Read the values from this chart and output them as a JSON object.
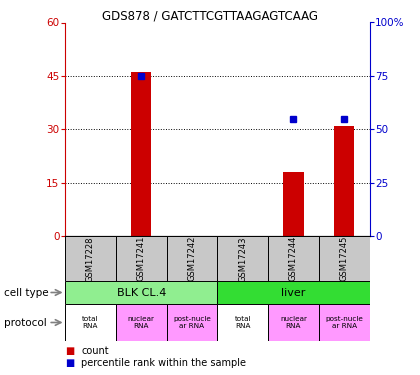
{
  "title": "GDS878 / GATCTTCGTTAAGAGTCAAG",
  "samples": [
    "GSM17228",
    "GSM17241",
    "GSM17242",
    "GSM17243",
    "GSM17244",
    "GSM17245"
  ],
  "counts": [
    0,
    46,
    0,
    0,
    18,
    31
  ],
  "percentiles": [
    null,
    75,
    null,
    null,
    55,
    55
  ],
  "ylim_left": [
    0,
    60
  ],
  "ylim_right": [
    0,
    100
  ],
  "yticks_left": [
    0,
    15,
    30,
    45,
    60
  ],
  "yticks_right": [
    0,
    25,
    50,
    75,
    100
  ],
  "cell_type_groups": [
    {
      "label": "BLK CL.4",
      "start": 0,
      "end": 3,
      "color": "#90EE90"
    },
    {
      "label": "liver",
      "start": 3,
      "end": 6,
      "color": "#33DD33"
    }
  ],
  "proto_labels": [
    "total\nRNA",
    "nuclear\nRNA",
    "post-nucle\nar RNA",
    "total\nRNA",
    "nuclear\nRNA",
    "post-nucle\nar RNA"
  ],
  "proto_colors": [
    "#FFFFFF",
    "#FF99FF",
    "#FF99FF",
    "#FFFFFF",
    "#FF99FF",
    "#FF99FF"
  ],
  "bar_color": "#CC0000",
  "dot_color": "#0000CC",
  "tick_color_left": "#CC0000",
  "tick_color_right": "#0000CC",
  "sample_box_color": "#C8C8C8",
  "legend_items": [
    {
      "color": "#CC0000",
      "label": "count"
    },
    {
      "color": "#0000CC",
      "label": "percentile rank within the sample"
    }
  ]
}
